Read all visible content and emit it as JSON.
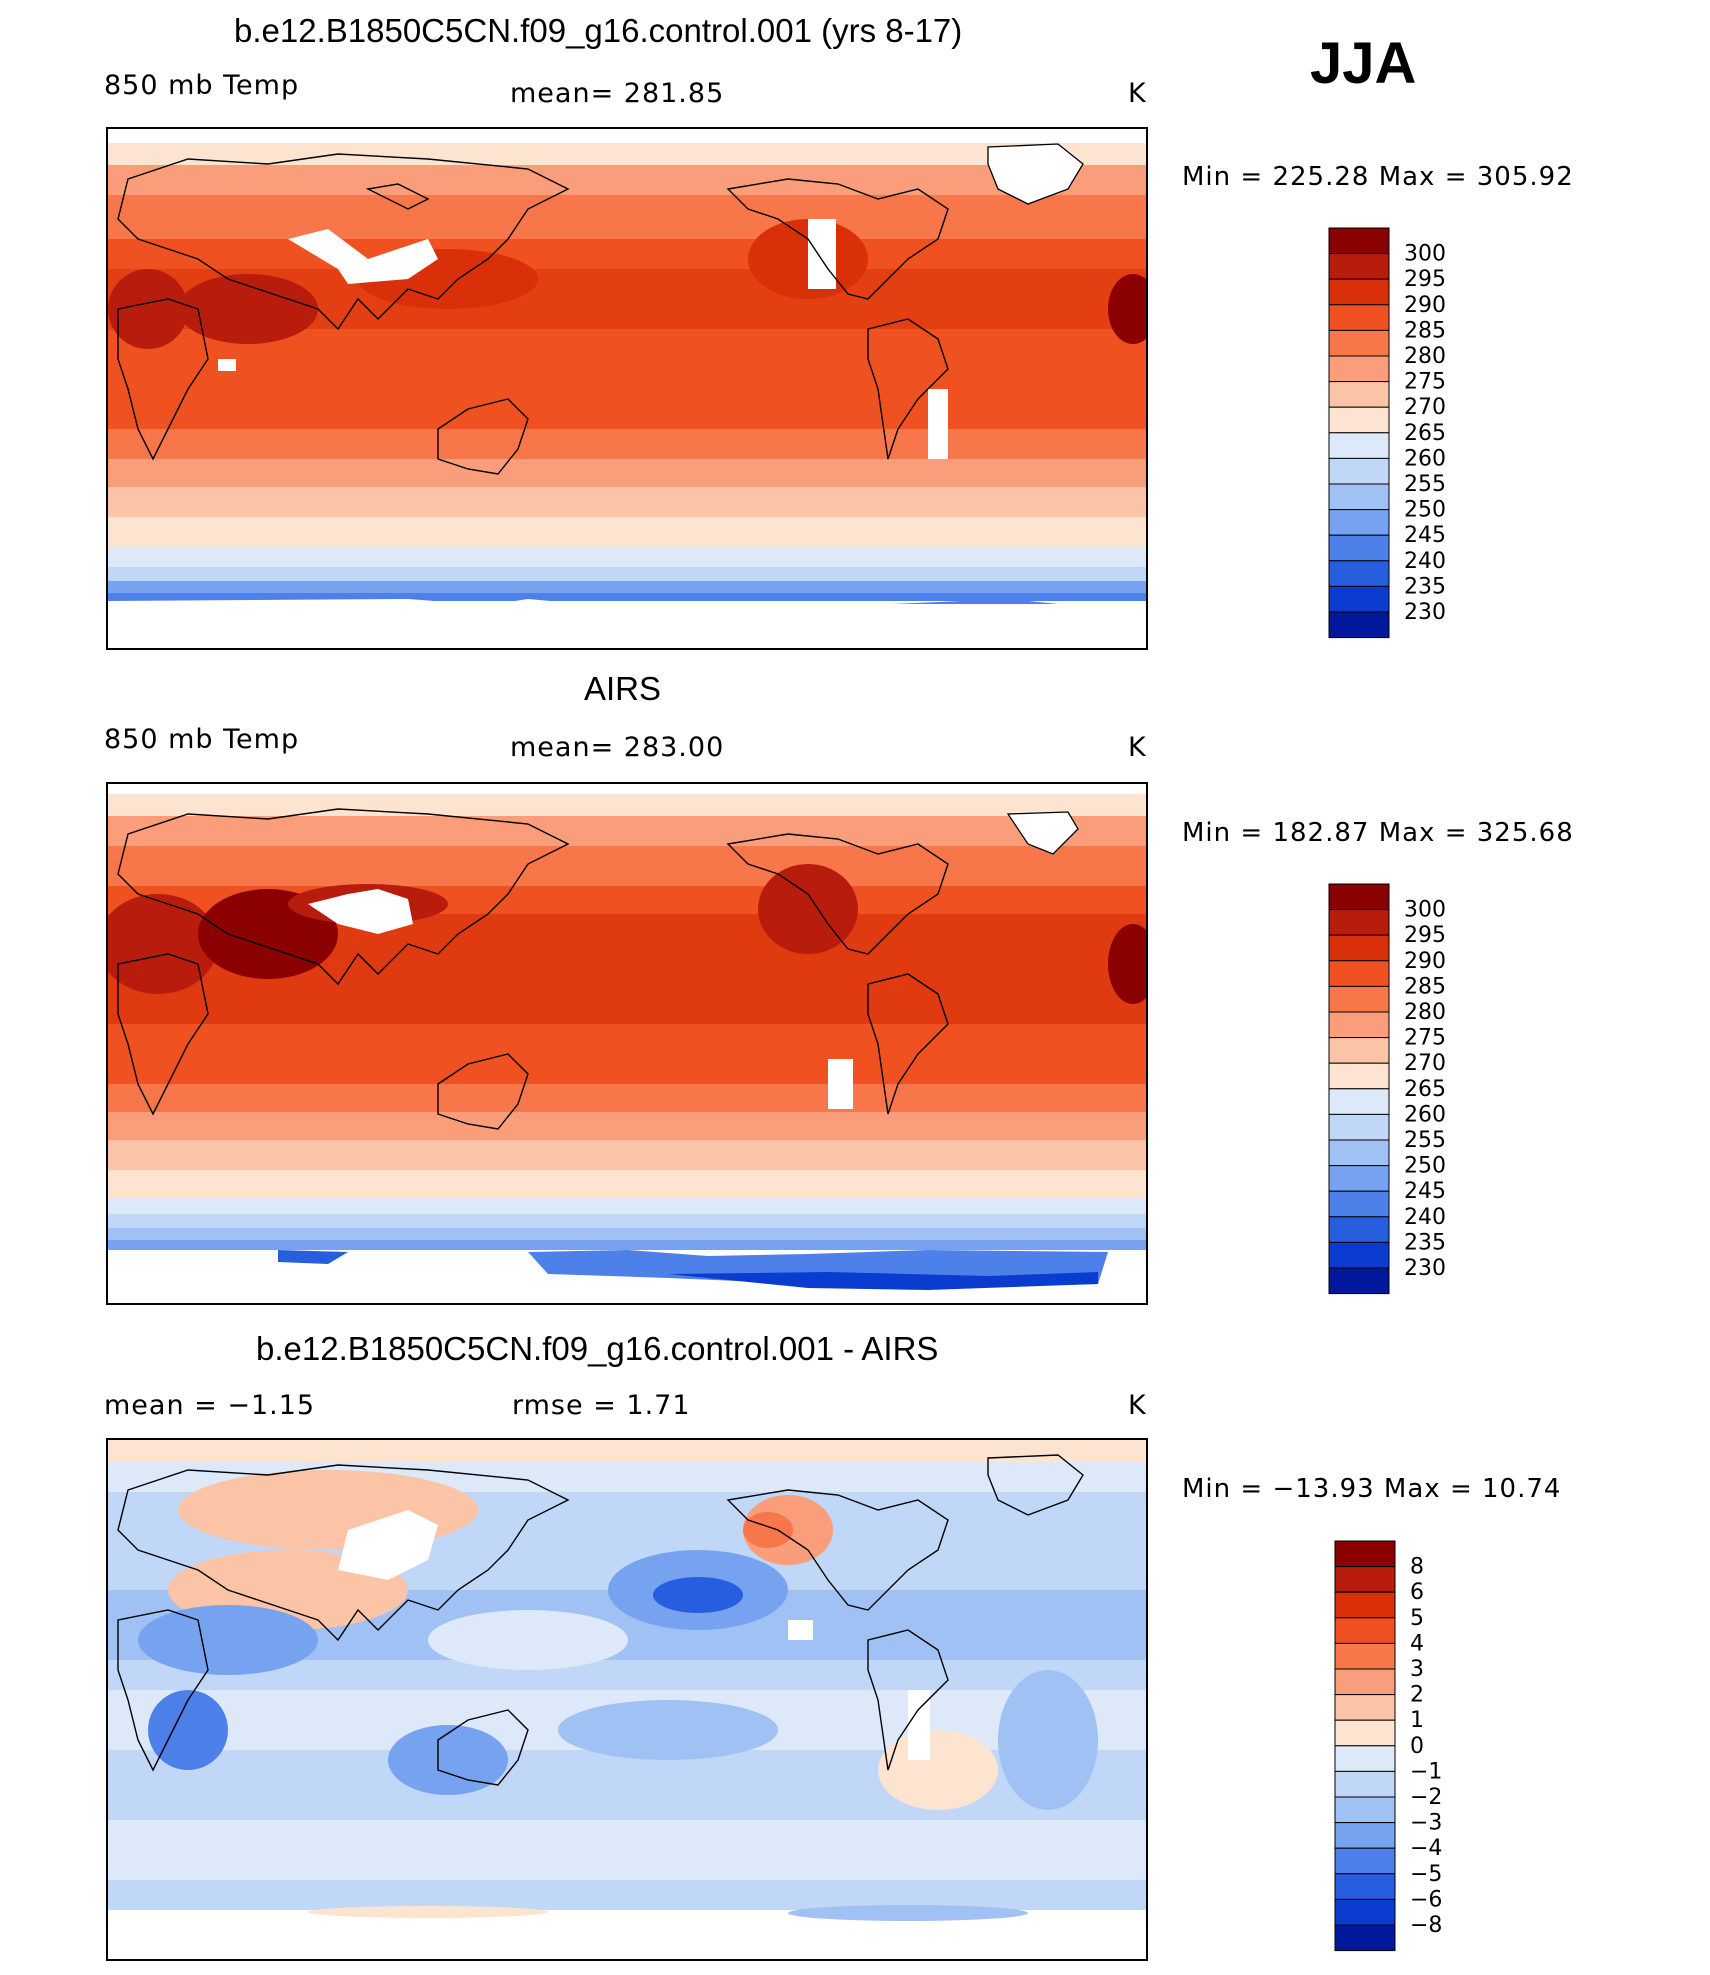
{
  "season": "JJA",
  "panels": [
    {
      "title": "b.e12.B1850C5CN.f09_g16.control.001 (yrs 8-17)",
      "left": "850 mb Temp",
      "center": "mean=  281.85",
      "units": "K",
      "minmax": "Min  =  225.28  Max  =  305.92",
      "colorbar": {
        "labels": [
          "300",
          "295",
          "290",
          "285",
          "280",
          "275",
          "270",
          "265",
          "260",
          "255",
          "250",
          "245",
          "240",
          "235",
          "230"
        ],
        "colors": [
          "#8b0000",
          "#b71c0c",
          "#d9300a",
          "#ef5220",
          "#f7774a",
          "#f99d7a",
          "#fbc4a6",
          "#fde4d0",
          "#dde9f8",
          "#c1d7f7",
          "#9fc1f4",
          "#77a2ef",
          "#4e80ea",
          "#275ee0",
          "#0a3ccf",
          "#00199c"
        ]
      }
    },
    {
      "title": "AIRS",
      "left": "850 mb Temp",
      "center": "mean=  283.00",
      "units": "K",
      "minmax": "Min  =  182.87  Max  =  325.68",
      "colorbar": {
        "labels": [
          "300",
          "295",
          "290",
          "285",
          "280",
          "275",
          "270",
          "265",
          "260",
          "255",
          "250",
          "245",
          "240",
          "235",
          "230"
        ],
        "colors": [
          "#8b0000",
          "#b71c0c",
          "#d9300a",
          "#ef5220",
          "#f7774a",
          "#f99d7a",
          "#fbc4a6",
          "#fde4d0",
          "#dde9f8",
          "#c1d7f7",
          "#9fc1f4",
          "#77a2ef",
          "#4e80ea",
          "#275ee0",
          "#0a3ccf",
          "#00199c"
        ]
      }
    },
    {
      "title": "b.e12.B1850C5CN.f09_g16.control.001 - AIRS",
      "left": "mean  =    −1.15",
      "center": "rmse  =     1.71",
      "units": "K",
      "minmax": "Min  =  −13.93  Max  =    10.74",
      "colorbar": {
        "labels": [
          "8",
          "6",
          "5",
          "4",
          "3",
          "2",
          "1",
          "0",
          "−1",
          "−2",
          "−3",
          "−4",
          "−5",
          "−6",
          "−8"
        ],
        "colors": [
          "#8b0000",
          "#b71c0c",
          "#d9300a",
          "#ef5220",
          "#f7774a",
          "#f99d7a",
          "#fbc4a6",
          "#fde4d0",
          "#dde9f8",
          "#c1d7f7",
          "#9fc1f4",
          "#77a2ef",
          "#4e80ea",
          "#275ee0",
          "#0a3ccf",
          "#00199c"
        ]
      }
    }
  ]
}
